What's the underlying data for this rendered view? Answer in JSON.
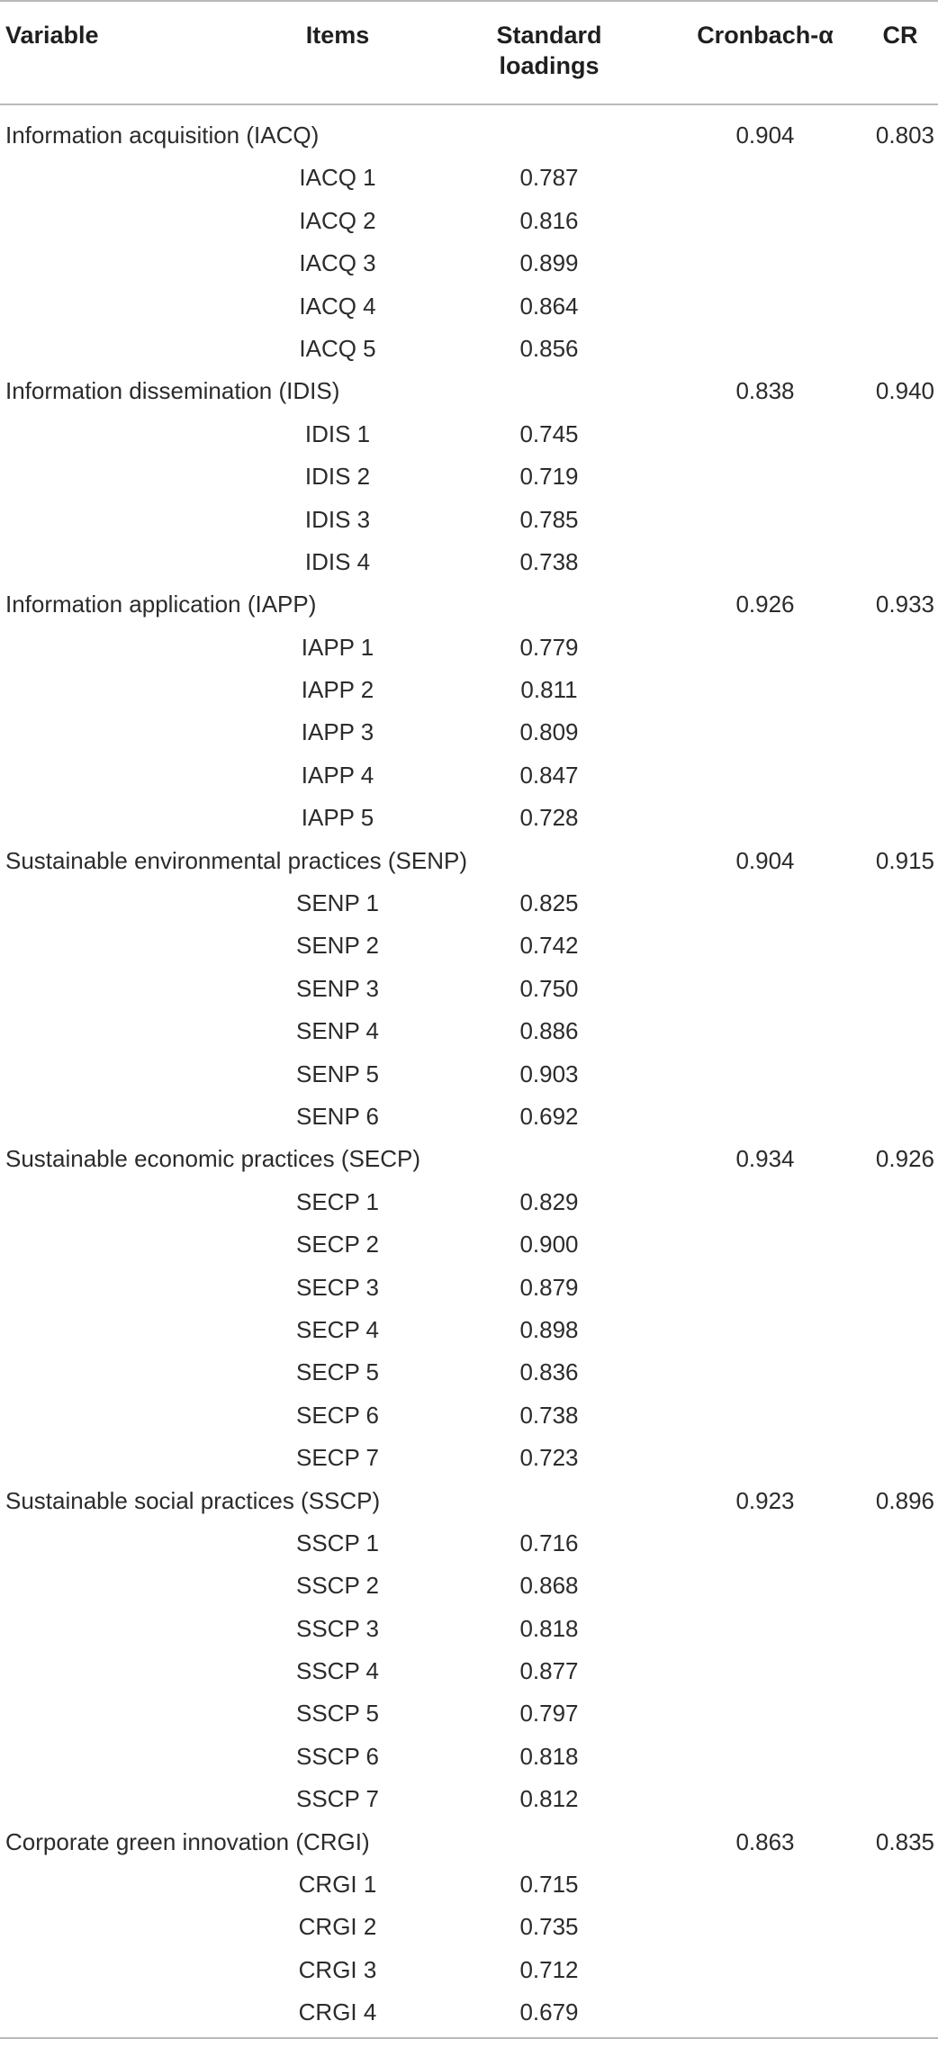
{
  "headers": {
    "variable": "Variable",
    "items": "Items",
    "loadings_line1": "Standard",
    "loadings_line2": "loadings",
    "alpha": "Cronbach-α",
    "cr": "CR"
  },
  "groups": [
    {
      "variable": "Information acquisition (IACQ)",
      "alpha": "0.904",
      "cr": "0.803",
      "items": [
        {
          "item": "IACQ 1",
          "loading": "0.787"
        },
        {
          "item": "IACQ 2",
          "loading": "0.816"
        },
        {
          "item": "IACQ 3",
          "loading": "0.899"
        },
        {
          "item": "IACQ 4",
          "loading": "0.864"
        },
        {
          "item": "IACQ 5",
          "loading": "0.856"
        }
      ]
    },
    {
      "variable": "Information dissemination (IDIS)",
      "alpha": "0.838",
      "cr": "0.940",
      "items": [
        {
          "item": "IDIS 1",
          "loading": "0.745"
        },
        {
          "item": "IDIS 2",
          "loading": "0.719"
        },
        {
          "item": "IDIS 3",
          "loading": "0.785"
        },
        {
          "item": "IDIS 4",
          "loading": "0.738"
        }
      ]
    },
    {
      "variable": "Information application (IAPP)",
      "alpha": "0.926",
      "cr": "0.933",
      "items": [
        {
          "item": "IAPP 1",
          "loading": "0.779"
        },
        {
          "item": "IAPP 2",
          "loading": "0.811"
        },
        {
          "item": "IAPP 3",
          "loading": "0.809"
        },
        {
          "item": "IAPP 4",
          "loading": "0.847"
        },
        {
          "item": "IAPP 5",
          "loading": "0.728"
        }
      ]
    },
    {
      "variable": "Sustainable environmental practices (SENP)",
      "alpha": "0.904",
      "cr": "0.915",
      "items": [
        {
          "item": "SENP 1",
          "loading": "0.825"
        },
        {
          "item": "SENP 2",
          "loading": "0.742"
        },
        {
          "item": "SENP 3",
          "loading": "0.750"
        },
        {
          "item": "SENP 4",
          "loading": "0.886"
        },
        {
          "item": "SENP 5",
          "loading": "0.903"
        },
        {
          "item": "SENP 6",
          "loading": "0.692"
        }
      ]
    },
    {
      "variable": "Sustainable economic practices (SECP)",
      "alpha": "0.934",
      "cr": "0.926",
      "items": [
        {
          "item": "SECP 1",
          "loading": "0.829"
        },
        {
          "item": "SECP 2",
          "loading": "0.900"
        },
        {
          "item": "SECP 3",
          "loading": "0.879"
        },
        {
          "item": "SECP 4",
          "loading": "0.898"
        },
        {
          "item": "SECP 5",
          "loading": "0.836"
        },
        {
          "item": "SECP 6",
          "loading": "0.738"
        },
        {
          "item": "SECP 7",
          "loading": "0.723"
        }
      ]
    },
    {
      "variable": "Sustainable social practices (SSCP)",
      "alpha": "0.923",
      "cr": "0.896",
      "items": [
        {
          "item": "SSCP 1",
          "loading": "0.716"
        },
        {
          "item": "SSCP 2",
          "loading": "0.868"
        },
        {
          "item": "SSCP 3",
          "loading": "0.818"
        },
        {
          "item": "SSCP 4",
          "loading": "0.877"
        },
        {
          "item": "SSCP 5",
          "loading": "0.797"
        },
        {
          "item": "SSCP 6",
          "loading": "0.818"
        },
        {
          "item": "SSCP 7",
          "loading": "0.812"
        }
      ]
    },
    {
      "variable": "Corporate green innovation (CRGI)",
      "alpha": "0.863",
      "cr": "0.835",
      "items": [
        {
          "item": "CRGI 1",
          "loading": "0.715"
        },
        {
          "item": "CRGI 2",
          "loading": "0.735"
        },
        {
          "item": "CRGI 3",
          "loading": "0.712"
        },
        {
          "item": "CRGI 4",
          "loading": "0.679"
        }
      ]
    }
  ]
}
